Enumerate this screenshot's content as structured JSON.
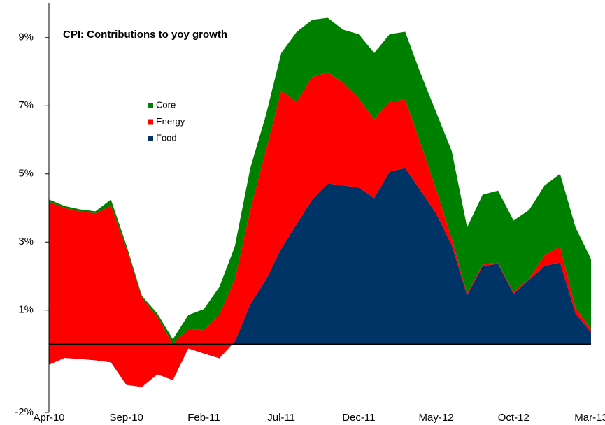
{
  "chart_data": {
    "type": "stacked_area",
    "title": "CPI: Contributions to yoy growth",
    "categories": [
      "Apr-10",
      null,
      null,
      null,
      null,
      "Sep-10",
      null,
      null,
      null,
      null,
      "Feb-11",
      null,
      null,
      null,
      null,
      "Jul-11",
      null,
      null,
      null,
      null,
      "Dec-11",
      null,
      null,
      null,
      null,
      "May-12",
      null,
      null,
      null,
      null,
      "Oct-12",
      null,
      null,
      null,
      null,
      "Mar-13"
    ],
    "series": [
      {
        "name": "Food",
        "color": "#003366",
        "values": [
          -0.6,
          -0.4,
          -0.43,
          -0.47,
          -0.53,
          -1.19,
          -1.25,
          -0.88,
          -1.05,
          -0.12,
          -0.27,
          -0.41,
          0.08,
          1.17,
          1.89,
          2.81,
          3.53,
          4.25,
          4.72,
          4.66,
          4.6,
          4.29,
          5.07,
          5.17,
          4.51,
          3.84,
          2.91,
          1.44,
          2.3,
          2.36,
          1.48,
          1.89,
          2.3,
          2.4,
          0.9,
          0.35
        ]
      },
      {
        "name": "Energy",
        "color": "#ff0000",
        "values": [
          4.78,
          4.4,
          4.33,
          4.31,
          4.59,
          4.0,
          2.62,
          1.68,
          1.05,
          0.57,
          0.68,
          1.27,
          1.81,
          2.77,
          3.79,
          4.62,
          3.59,
          3.59,
          3.26,
          3.01,
          2.62,
          2.31,
          2.05,
          2.01,
          1.38,
          0.71,
          0.21,
          0.04,
          0.04,
          0.04,
          0.04,
          0.04,
          0.31,
          0.47,
          0.17,
          0.1
        ]
      },
      {
        "name": "Core",
        "color": "#008000",
        "values": [
          0.07,
          0.06,
          0.06,
          0.06,
          0.19,
          0.1,
          0.05,
          0.1,
          0.15,
          0.41,
          0.62,
          0.82,
          0.98,
          1.23,
          1.03,
          1.12,
          2.05,
          1.68,
          1.6,
          1.56,
          1.88,
          1.95,
          1.98,
          1.99,
          2.05,
          2.26,
          2.56,
          1.95,
          2.05,
          2.11,
          2.11,
          2.01,
          2.05,
          2.13,
          2.36,
          2.05
        ]
      }
    ],
    "ylim": [
      -2,
      10
    ],
    "yticks": [
      {
        "value": -2,
        "label": "-2%"
      },
      {
        "value": 1,
        "label": "1%"
      },
      {
        "value": 3,
        "label": "3%"
      },
      {
        "value": 5,
        "label": "5%"
      },
      {
        "value": 7,
        "label": "7%"
      },
      {
        "value": 9,
        "label": "9%"
      }
    ],
    "grid": false
  }
}
